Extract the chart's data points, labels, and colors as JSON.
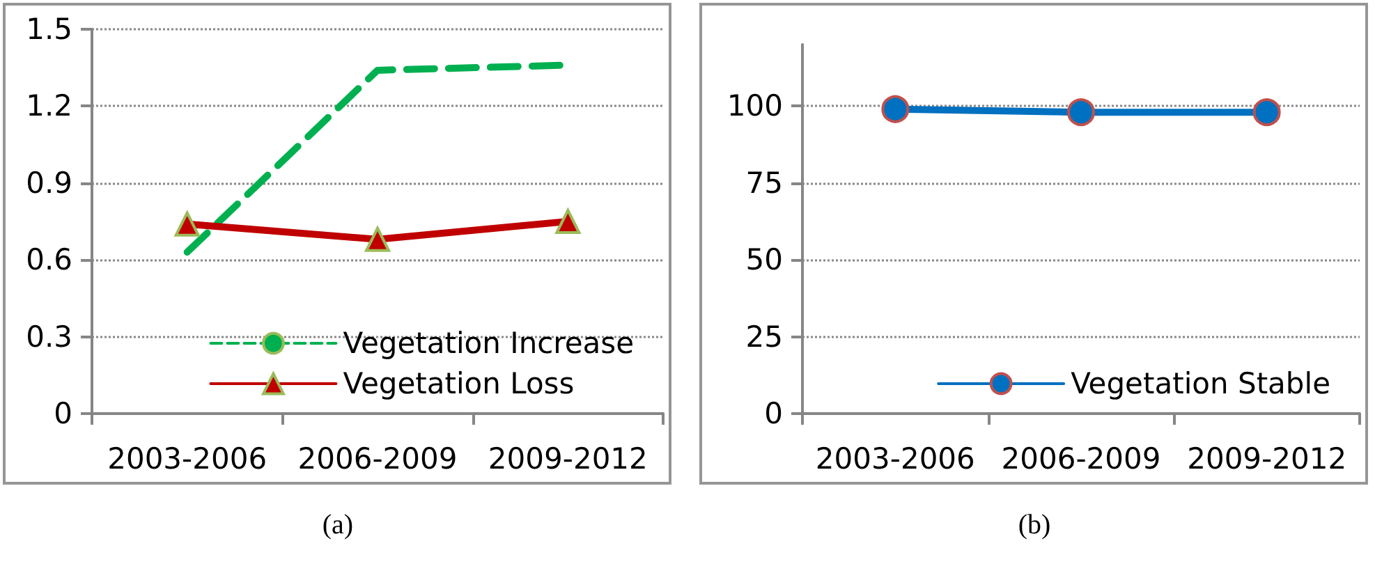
{
  "chart_data": [
    {
      "type": "line",
      "categories": [
        "2003-2006",
        "2006-2009",
        "2009-2012"
      ],
      "series": [
        {
          "name": "Vegetation Increase",
          "color": "#00b050",
          "values": [
            0.63,
            1.34,
            1.36
          ],
          "line_style": "dashed",
          "marker": "none"
        },
        {
          "name": "Vegetation Loss",
          "color": "#c00000",
          "values": [
            0.74,
            0.68,
            0.75
          ],
          "line_style": "solid",
          "marker": "triangle"
        }
      ],
      "ylim": [
        0,
        1.5
      ],
      "yticks": [
        0,
        0.3,
        0.6,
        0.9,
        1.2,
        1.5
      ],
      "grid": "y",
      "legend": "bottom right",
      "annotations": [
        "(a)"
      ]
    },
    {
      "type": "line",
      "categories": [
        "2003-2006",
        "2006-2009",
        "2009-2012"
      ],
      "series": [
        {
          "name": "Vegetation Stable",
          "color": "#0070c0",
          "values": [
            99,
            98,
            98
          ],
          "line_style": "solid",
          "marker": "circle"
        }
      ],
      "ylim": [
        0,
        120
      ],
      "yticks": [
        0,
        25,
        50,
        75,
        100
      ],
      "grid": "y",
      "legend": "bottom right",
      "annotations": [
        "(b)"
      ]
    }
  ]
}
